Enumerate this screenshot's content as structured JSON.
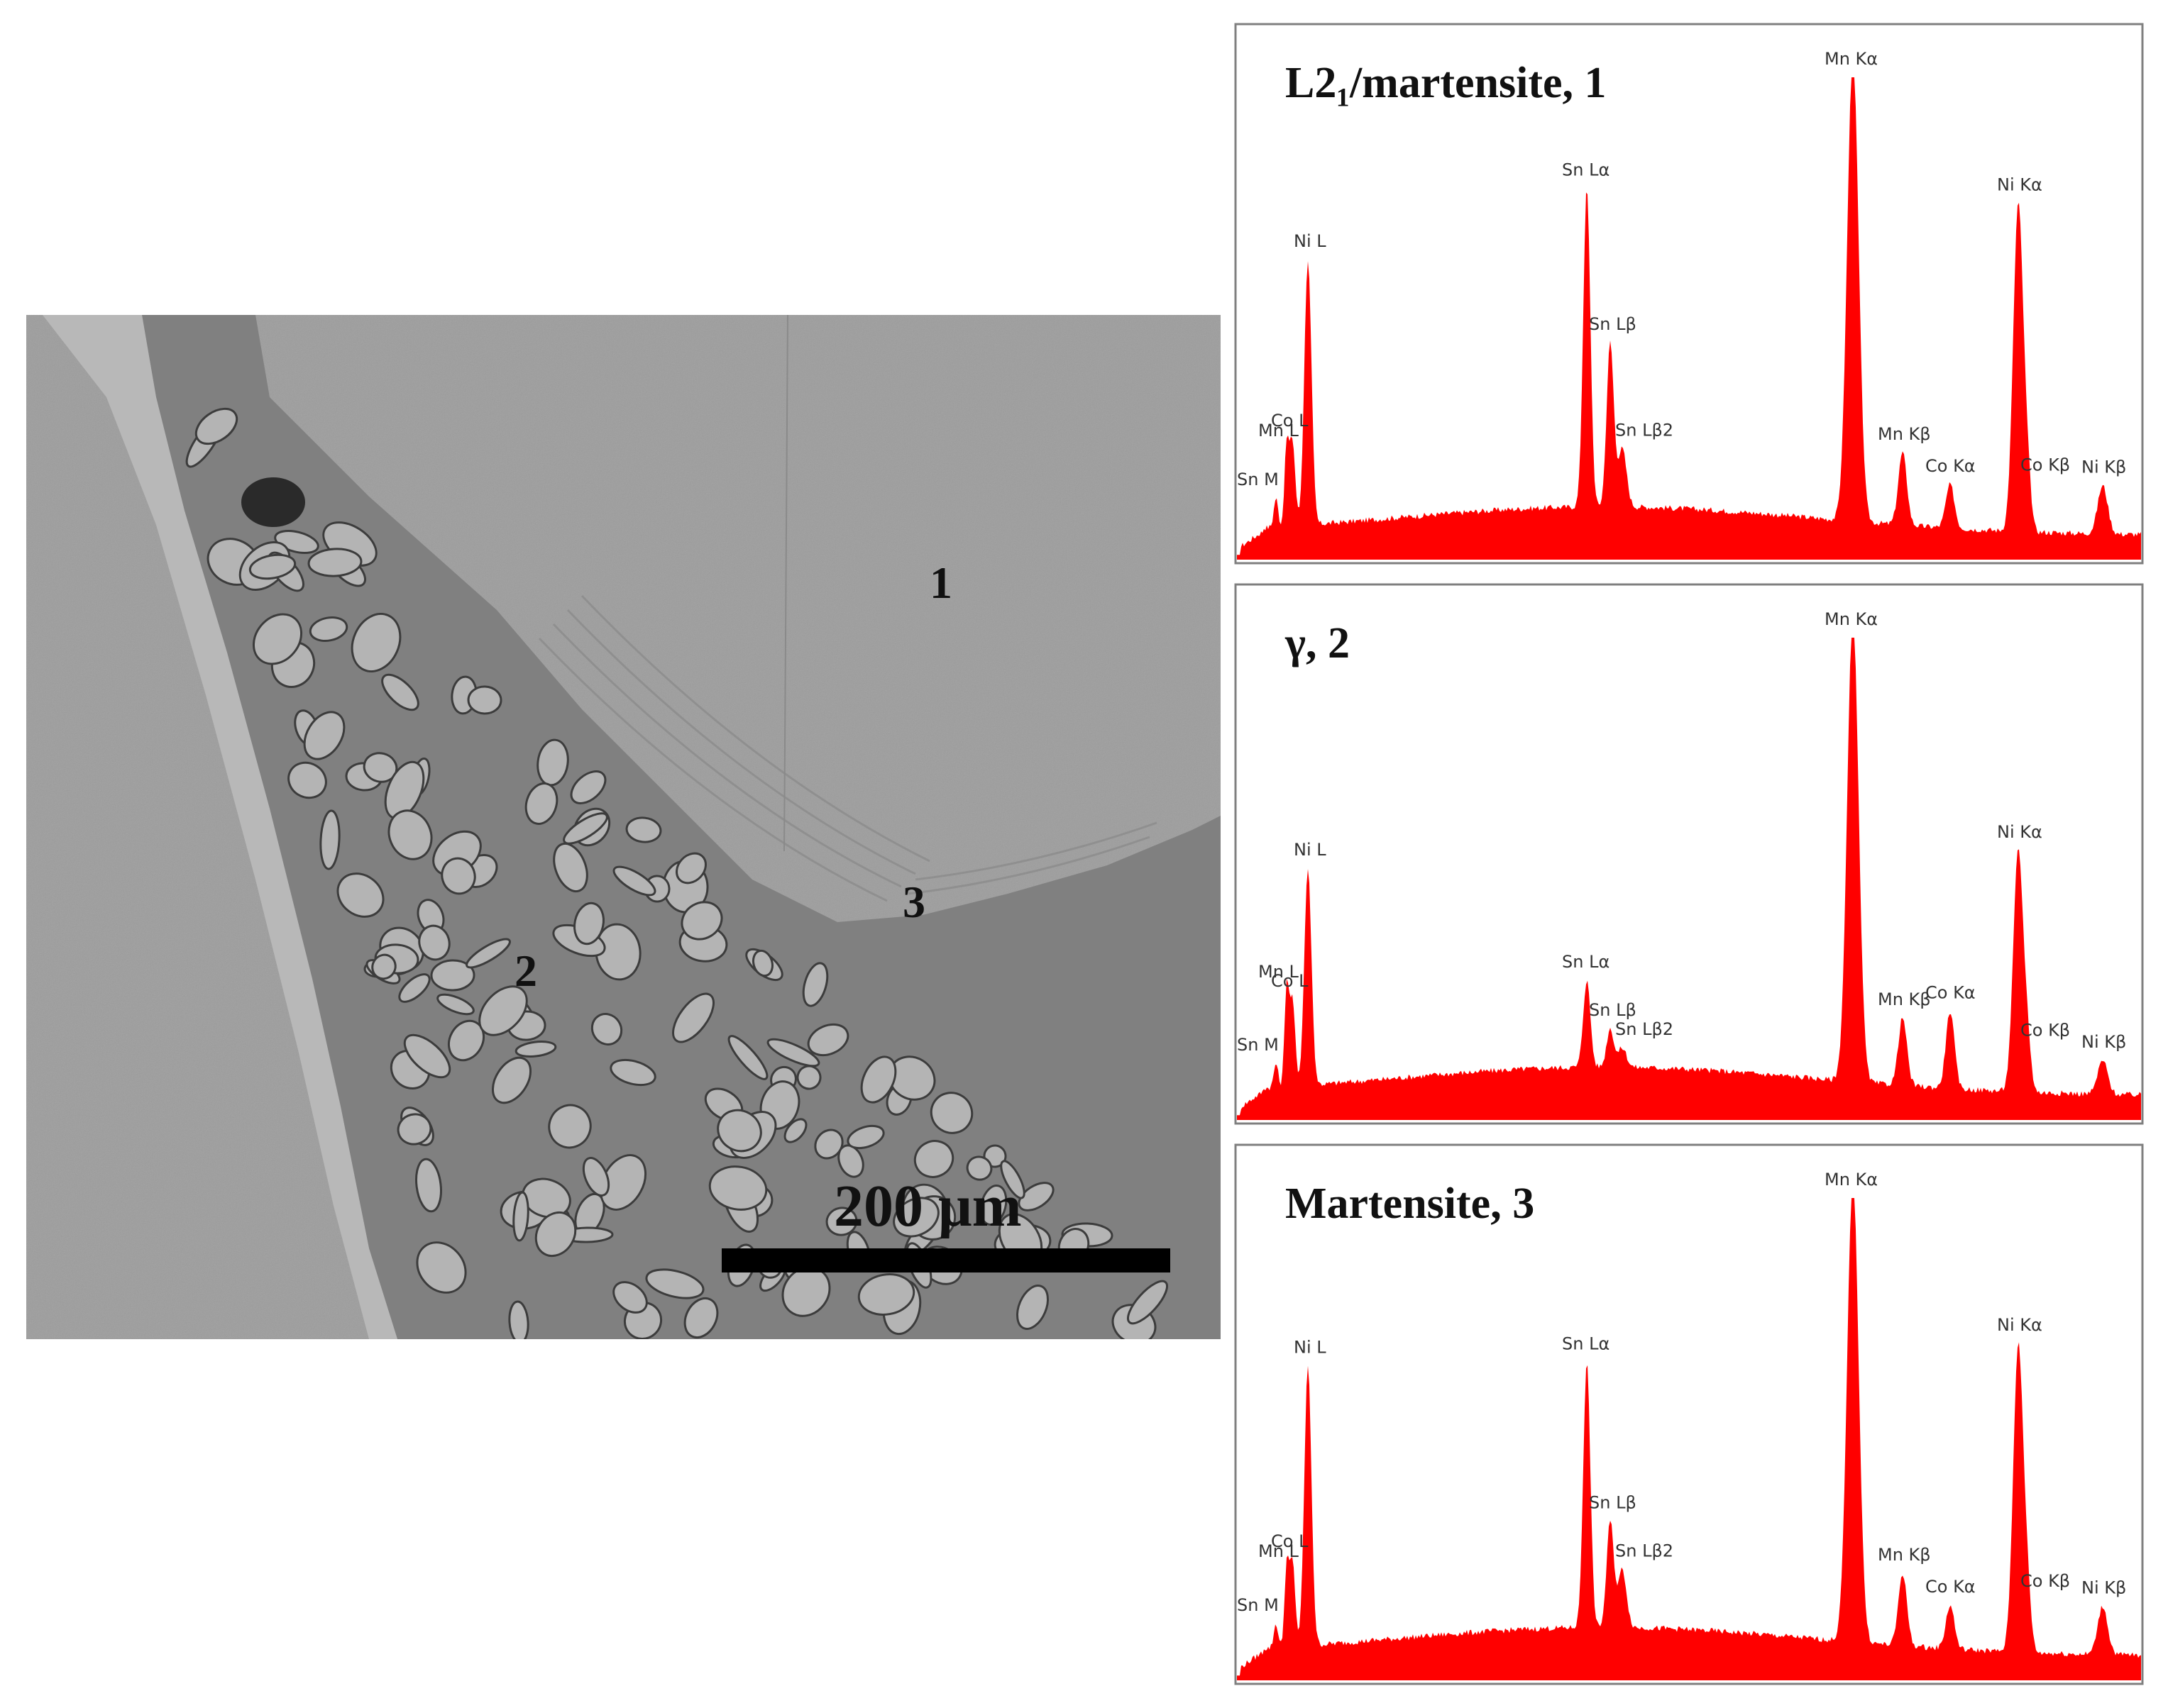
{
  "sem_image": {
    "point_labels": [
      "1",
      "2",
      "3"
    ],
    "scale_bar_label": "200 μm"
  },
  "colors": {
    "spectrum_fill": "#ff0000",
    "sem_matrix": "#a9a9a9",
    "sem_dark_phase": "#7a7a7a",
    "panel_border": "#7f7f7f"
  },
  "chart_data": [
    {
      "type": "area",
      "title": "L2₁/martensite, 1",
      "peaks": [
        {
          "label": "Sn M",
          "height": 0.06
        },
        {
          "label": "Mn L",
          "height": 0.16
        },
        {
          "label": "Co L",
          "height": 0.18
        },
        {
          "label": "Ni L",
          "height": 0.55
        },
        {
          "label": "Sn Lα",
          "height": 0.66
        },
        {
          "label": "Sn Lβ",
          "height": 0.34
        },
        {
          "label": "Sn Lβ2",
          "height": 0.12
        },
        {
          "label": "Mn Kα",
          "height": 0.97
        },
        {
          "label": "Mn Kβ",
          "height": 0.15
        },
        {
          "label": "Co Kα",
          "height": 0.09
        },
        {
          "label": "Ni Kα",
          "height": 0.68
        },
        {
          "label": "Co Kβ",
          "height": 0.1
        },
        {
          "label": "Ni Kβ",
          "height": 0.1
        }
      ]
    },
    {
      "type": "area",
      "title": "γ, 2",
      "peaks": [
        {
          "label": "Sn M",
          "height": 0.05
        },
        {
          "label": "Mn L",
          "height": 0.2
        },
        {
          "label": "Co L",
          "height": 0.18
        },
        {
          "label": "Ni L",
          "height": 0.45
        },
        {
          "label": "Sn Lα",
          "height": 0.18
        },
        {
          "label": "Sn Lβ",
          "height": 0.08
        },
        {
          "label": "Sn Lβ2",
          "height": 0.04
        },
        {
          "label": "Mn Kα",
          "height": 0.97
        },
        {
          "label": "Mn Kβ",
          "height": 0.14
        },
        {
          "label": "Co Kα",
          "height": 0.16
        },
        {
          "label": "Ni Kα",
          "height": 0.5
        },
        {
          "label": "Co Kβ",
          "height": 0.09
        },
        {
          "label": "Ni Kβ",
          "height": 0.07
        }
      ]
    },
    {
      "type": "area",
      "title": "Martensite, 3",
      "peaks": [
        {
          "label": "Sn M",
          "height": 0.05
        },
        {
          "label": "Mn L",
          "height": 0.16
        },
        {
          "label": "Co L",
          "height": 0.18
        },
        {
          "label": "Ni L",
          "height": 0.58
        },
        {
          "label": "Sn Lα",
          "height": 0.55
        },
        {
          "label": "Sn Lβ",
          "height": 0.22
        },
        {
          "label": "Sn Lβ2",
          "height": 0.12
        },
        {
          "label": "Mn Kα",
          "height": 0.97
        },
        {
          "label": "Mn Kβ",
          "height": 0.15
        },
        {
          "label": "Co Kα",
          "height": 0.09
        },
        {
          "label": "Ni Kα",
          "height": 0.64
        },
        {
          "label": "Co Kβ",
          "height": 0.11
        },
        {
          "label": "Ni Kβ",
          "height": 0.1
        }
      ]
    }
  ]
}
